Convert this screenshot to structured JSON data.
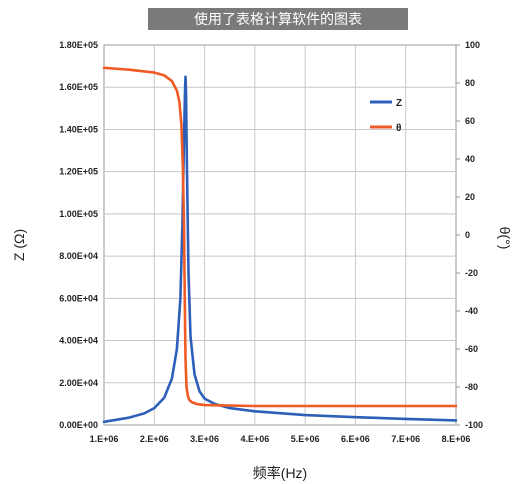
{
  "chart_data": {
    "type": "line",
    "title": "使用了表格计算软件的图表",
    "xlabel": "频率(Hz)",
    "ylabel": "Z (Ω)",
    "y2label": "θ(°)",
    "xlim": [
      1000000,
      8000000
    ],
    "ylim": [
      0,
      180000
    ],
    "y2lim": [
      -100,
      100
    ],
    "grid": true,
    "legend": "top-right",
    "x_tick_labels": [
      "1.E+06",
      "2.E+06",
      "3.E+06",
      "4.E+06",
      "5.E+06",
      "6.E+06",
      "7.E+06",
      "8.E+06"
    ],
    "y_tick_labels": [
      "0.00E+00",
      "2.00E+04",
      "4.00E+04",
      "6.00E+04",
      "8.00E+04",
      "1.00E+05",
      "1.20E+05",
      "1.40E+05",
      "1.60E+05",
      "1.80E+05"
    ],
    "y2_tick_labels": [
      "-100",
      "-80",
      "-60",
      "-40",
      "-20",
      "0",
      "20",
      "40",
      "60",
      "80",
      "100"
    ],
    "series": [
      {
        "name": "Z",
        "axis": "left",
        "color": "#2e5fb8",
        "x": [
          1000000,
          1500000,
          1800000,
          2000000,
          2200000,
          2350000,
          2450000,
          2520000,
          2560000,
          2590000,
          2610000,
          2620000,
          2630000,
          2650000,
          2680000,
          2720000,
          2800000,
          2900000,
          3000000,
          3200000,
          3500000,
          4000000,
          5000000,
          6000000,
          7000000,
          8000000
        ],
        "y": [
          1500,
          3500,
          5500,
          8000,
          13000,
          22000,
          36000,
          60000,
          95000,
          135000,
          158000,
          165000,
          158000,
          120000,
          72000,
          42000,
          24000,
          16000,
          12500,
          10000,
          8000,
          6500,
          4700,
          3700,
          2900,
          2200
        ]
      },
      {
        "name": "θ",
        "axis": "right",
        "color": "#f05a24",
        "x": [
          1000000,
          1500000,
          2000000,
          2200000,
          2350000,
          2450000,
          2500000,
          2540000,
          2570000,
          2590000,
          2600000,
          2610000,
          2620000,
          2640000,
          2670000,
          2700000,
          2750000,
          2850000,
          3000000,
          4000000,
          5000000,
          6000000,
          7000000,
          8000000
        ],
        "y": [
          88,
          87,
          85.5,
          84,
          81,
          76,
          70,
          58,
          35,
          5,
          -20,
          -45,
          -65,
          -80,
          -85,
          -87,
          -88,
          -89,
          -89.5,
          -90,
          -90,
          -90,
          -90,
          -90
        ]
      }
    ]
  }
}
